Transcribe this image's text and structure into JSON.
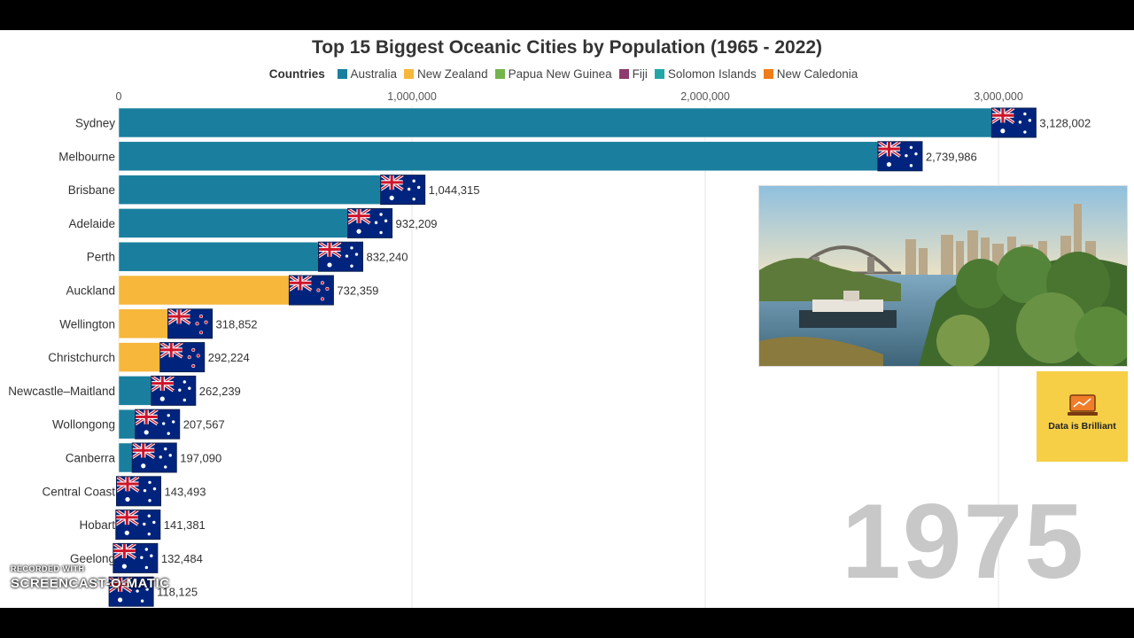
{
  "chart_data": {
    "type": "bar",
    "title": "Top 15 Biggest Oceanic Cities by Population (1965 - 2022)",
    "legend_title": "Countries",
    "legend": [
      {
        "name": "Australia",
        "color": "#1a7f9e"
      },
      {
        "name": "New Zealand",
        "color": "#f7b73b"
      },
      {
        "name": "Papua New Guinea",
        "color": "#74b44e"
      },
      {
        "name": "Fiji",
        "color": "#8d3a6e"
      },
      {
        "name": "Solomon Islands",
        "color": "#23a6a6"
      },
      {
        "name": "New Caledonia",
        "color": "#ef7d1a"
      }
    ],
    "legend_placement": "top",
    "x_ticks": [
      0,
      1000000,
      2000000,
      3000000
    ],
    "x_tick_labels": [
      "0",
      "1,000,000",
      "2,000,000",
      "3,000,000"
    ],
    "xlim": [
      0,
      3000000
    ],
    "grid": true,
    "orientation": "horizontal",
    "categories": [
      "Sydney",
      "Melbourne",
      "Brisbane",
      "Adelaide",
      "Perth",
      "Auckland",
      "Wellington",
      "Christchurch",
      "Newcastle–Maitland",
      "Wollongong",
      "Canberra",
      "Central Coast",
      "Hobart",
      "Geelong",
      ""
    ],
    "values": [
      3128002,
      2739986,
      1044315,
      932209,
      832240,
      732359,
      318852,
      292224,
      262239,
      207567,
      197090,
      143493,
      141381,
      132484,
      118125
    ],
    "value_labels": [
      "3,128,002",
      "2,739,986",
      "1,044,315",
      "932,209",
      "832,240",
      "732,359",
      "318,852",
      "292,224",
      "262,239",
      "207,567",
      "197,090",
      "143,493",
      "141,381",
      "132,484",
      "118,125"
    ],
    "countries": [
      "Australia",
      "Australia",
      "Australia",
      "Australia",
      "Australia",
      "New Zealand",
      "New Zealand",
      "New Zealand",
      "Australia",
      "Australia",
      "Australia",
      "Australia",
      "Australia",
      "Australia",
      "Australia"
    ],
    "current_year": "1975"
  },
  "branding": {
    "label": "Data is Brilliant",
    "color": "#f6cf46"
  },
  "watermark": {
    "line1": "RECORDED WITH",
    "line2": "SCREENCAST-O-MATIC"
  }
}
